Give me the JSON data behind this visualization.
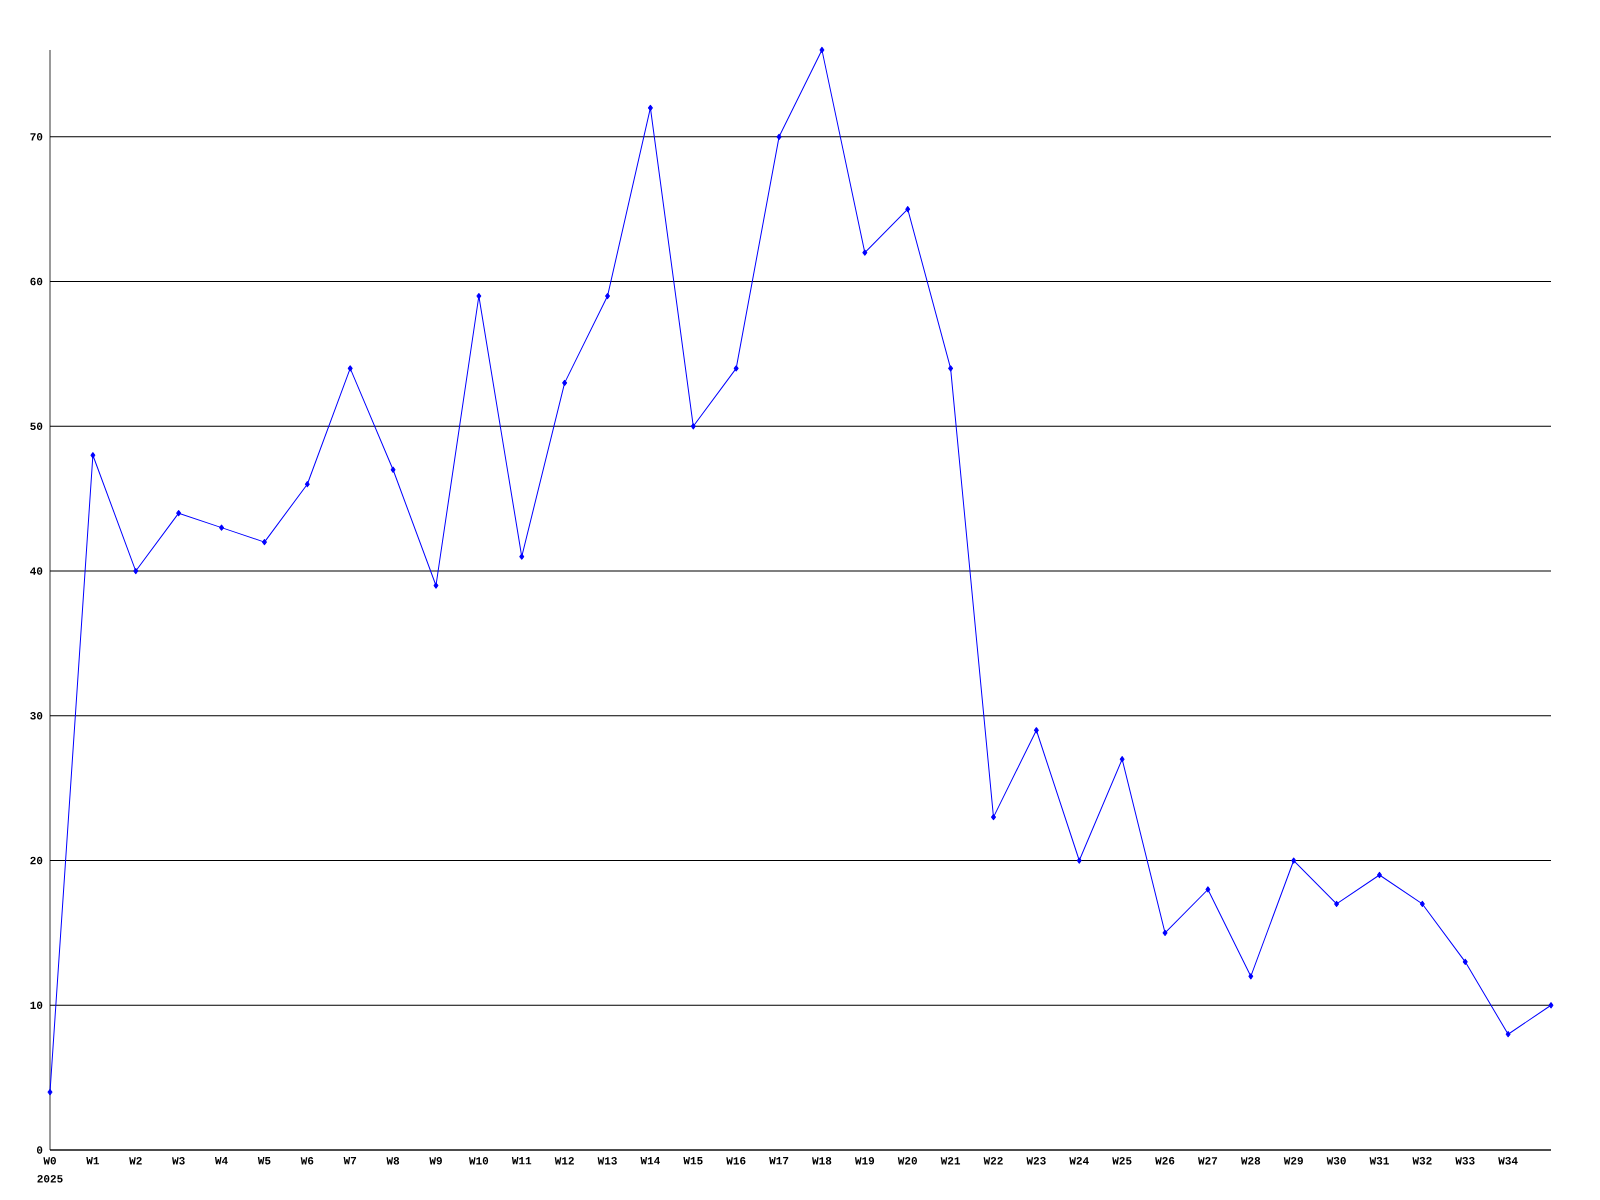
{
  "chart_data": {
    "type": "line",
    "categories": [
      "W0",
      "W1",
      "W2",
      "W3",
      "W4",
      "W5",
      "W6",
      "W7",
      "W8",
      "W9",
      "W10",
      "W11",
      "W12",
      "W13",
      "W14",
      "W15",
      "W16",
      "W17",
      "W18",
      "W19",
      "W20",
      "W21",
      "W22",
      "W23",
      "W24",
      "W25",
      "W26",
      "W27",
      "W28",
      "W29",
      "W30",
      "W31",
      "W32",
      "W33",
      "W34",
      null
    ],
    "values": [
      4,
      48,
      40,
      44,
      43,
      42,
      46,
      54,
      47,
      39,
      59,
      41,
      53,
      59,
      72,
      50,
      54,
      70,
      76,
      62,
      65,
      54,
      23,
      29,
      20,
      27,
      15,
      18,
      12,
      20,
      17,
      19,
      17,
      13,
      8,
      10
    ],
    "color": "#0000ff",
    "marker": "diamond",
    "grid": "y",
    "ylim": [
      0,
      76
    ],
    "yticks": [
      0,
      10,
      20,
      30,
      40,
      50,
      60,
      70
    ],
    "annotations": [
      "2025"
    ]
  }
}
